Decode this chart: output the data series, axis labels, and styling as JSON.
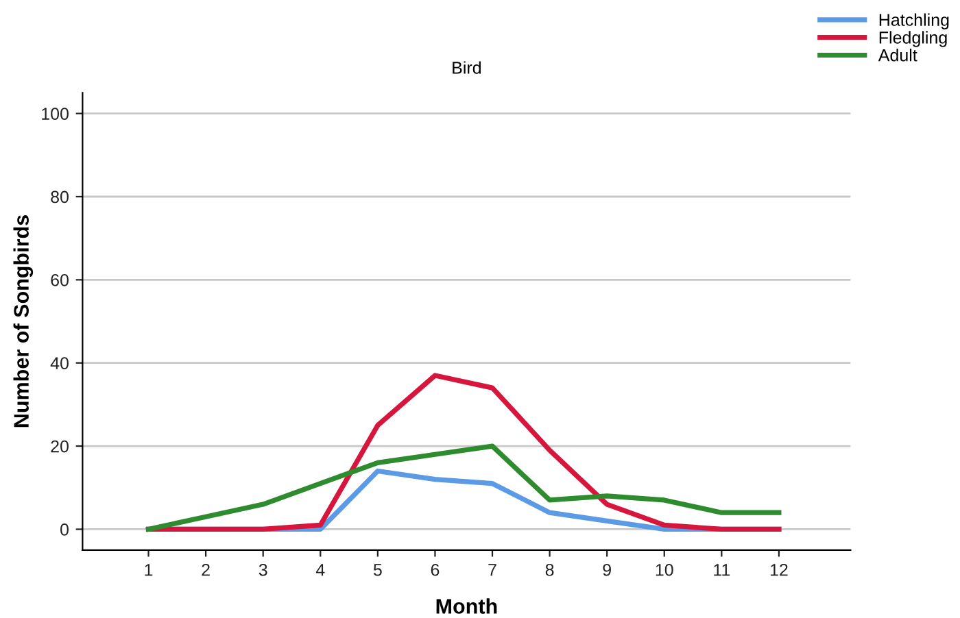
{
  "chart_data": {
    "type": "line",
    "title": "Bird",
    "xlabel": "Month",
    "ylabel": "Number of Songbirds",
    "categories": [
      "1",
      "2",
      "3",
      "4",
      "5",
      "6",
      "7",
      "8",
      "9",
      "10",
      "11",
      "12"
    ],
    "series": [
      {
        "name": "Hatchling",
        "color": "#5b9be6",
        "values": [
          0,
          0,
          0,
          0,
          14,
          12,
          11,
          4,
          2,
          0,
          0,
          0
        ]
      },
      {
        "name": "Fledgling",
        "color": "#d6163c",
        "values": [
          0,
          0,
          0,
          1,
          25,
          37,
          34,
          19,
          6,
          1,
          0,
          0
        ]
      },
      {
        "name": "Adult",
        "color": "#2e8b2e",
        "values": [
          0,
          3,
          6,
          11,
          16,
          18,
          20,
          7,
          8,
          7,
          4,
          4
        ]
      }
    ],
    "ylim": [
      -5,
      105
    ],
    "yticks": [
      0,
      20,
      40,
      60,
      80,
      100
    ],
    "grid": "y",
    "legend": "top right",
    "marker": "none",
    "line_style": "solid"
  }
}
